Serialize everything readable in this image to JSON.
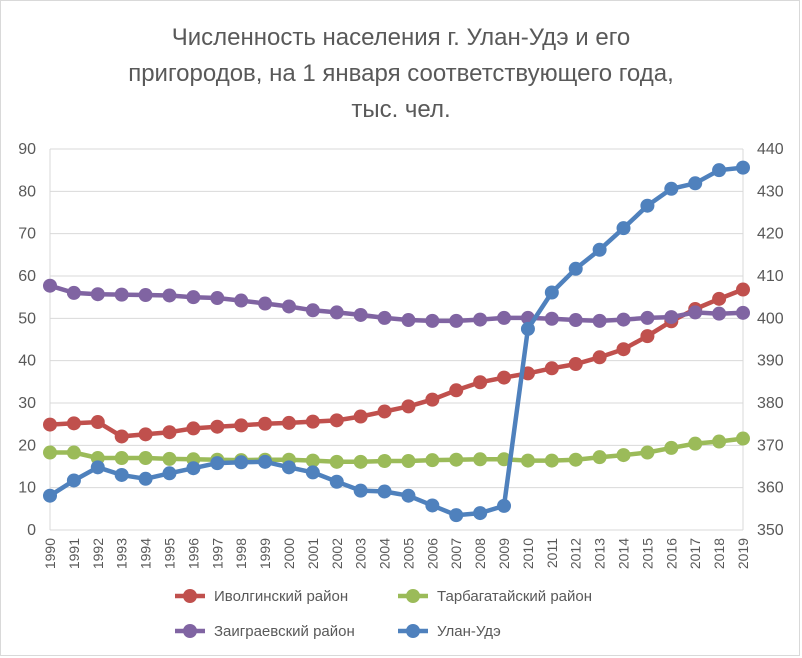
{
  "chart_data": {
    "type": "line",
    "title_lines": [
      "Численность населения г. Улан-Удэ и его",
      "пригородов, на 1 января соответствующего года,",
      "тыс. чел."
    ],
    "x": [
      "1990",
      "1991",
      "1992",
      "1993",
      "1994",
      "1995",
      "1996",
      "1997",
      "1998",
      "1999",
      "2000",
      "2001",
      "2002",
      "2003",
      "2004",
      "2005",
      "2006",
      "2007",
      "2008",
      "2009",
      "2010",
      "2011",
      "2012",
      "2013",
      "2014",
      "2015",
      "2016",
      "2017",
      "2018",
      "2019"
    ],
    "y_left": {
      "range": [
        0,
        90
      ],
      "ticks": [
        "0",
        "10",
        "20",
        "30",
        "40",
        "50",
        "60",
        "70",
        "80",
        "90"
      ]
    },
    "y_right": {
      "range": [
        350,
        440
      ],
      "ticks": [
        "350",
        "360",
        "370",
        "380",
        "390",
        "400",
        "410",
        "420",
        "430",
        "440"
      ]
    },
    "grid": "horizontal",
    "legend_position": "bottom",
    "series": [
      {
        "name": "Иволгинский район",
        "axis": "left",
        "color": "#c0504d",
        "values": [
          24.9,
          25.2,
          25.5,
          22.1,
          22.6,
          23.1,
          24.0,
          24.4,
          24.7,
          25.1,
          25.3,
          25.6,
          25.9,
          26.8,
          28.0,
          29.2,
          30.8,
          33.0,
          34.9,
          36.0,
          37.0,
          38.2,
          39.2,
          40.8,
          42.7,
          45.8,
          49.3,
          52.2,
          54.6,
          56.8
        ]
      },
      {
        "name": "Тарбагатайский район",
        "axis": "left",
        "color": "#9bbb59",
        "values": [
          18.3,
          18.3,
          17.0,
          17.0,
          17.0,
          16.8,
          16.7,
          16.6,
          16.5,
          16.6,
          16.6,
          16.4,
          16.1,
          16.1,
          16.3,
          16.3,
          16.5,
          16.6,
          16.7,
          16.7,
          16.4,
          16.4,
          16.6,
          17.2,
          17.7,
          18.3,
          19.4,
          20.4,
          20.9,
          21.6
        ]
      },
      {
        "name": "Заиграевский район",
        "axis": "left",
        "color": "#8064a2",
        "values": [
          57.7,
          56.0,
          55.7,
          55.6,
          55.5,
          55.4,
          55.0,
          54.8,
          54.2,
          53.5,
          52.8,
          51.9,
          51.4,
          50.8,
          50.1,
          49.6,
          49.4,
          49.4,
          49.7,
          50.1,
          50.1,
          49.9,
          49.6,
          49.4,
          49.7,
          50.1,
          50.3,
          51.4,
          51.1,
          51.3
        ]
      },
      {
        "name": "Улан-Удэ",
        "axis": "right",
        "color": "#4f81bd",
        "values": [
          358.1,
          361.7,
          364.8,
          363.0,
          362.1,
          363.4,
          364.6,
          365.8,
          366.0,
          366.1,
          364.8,
          363.6,
          361.4,
          359.3,
          359.1,
          358.1,
          355.8,
          353.5,
          354.0,
          355.7,
          397.5,
          406.1,
          411.7,
          416.2,
          421.3,
          426.6,
          430.6,
          431.9,
          435.0,
          435.6
        ]
      }
    ]
  }
}
